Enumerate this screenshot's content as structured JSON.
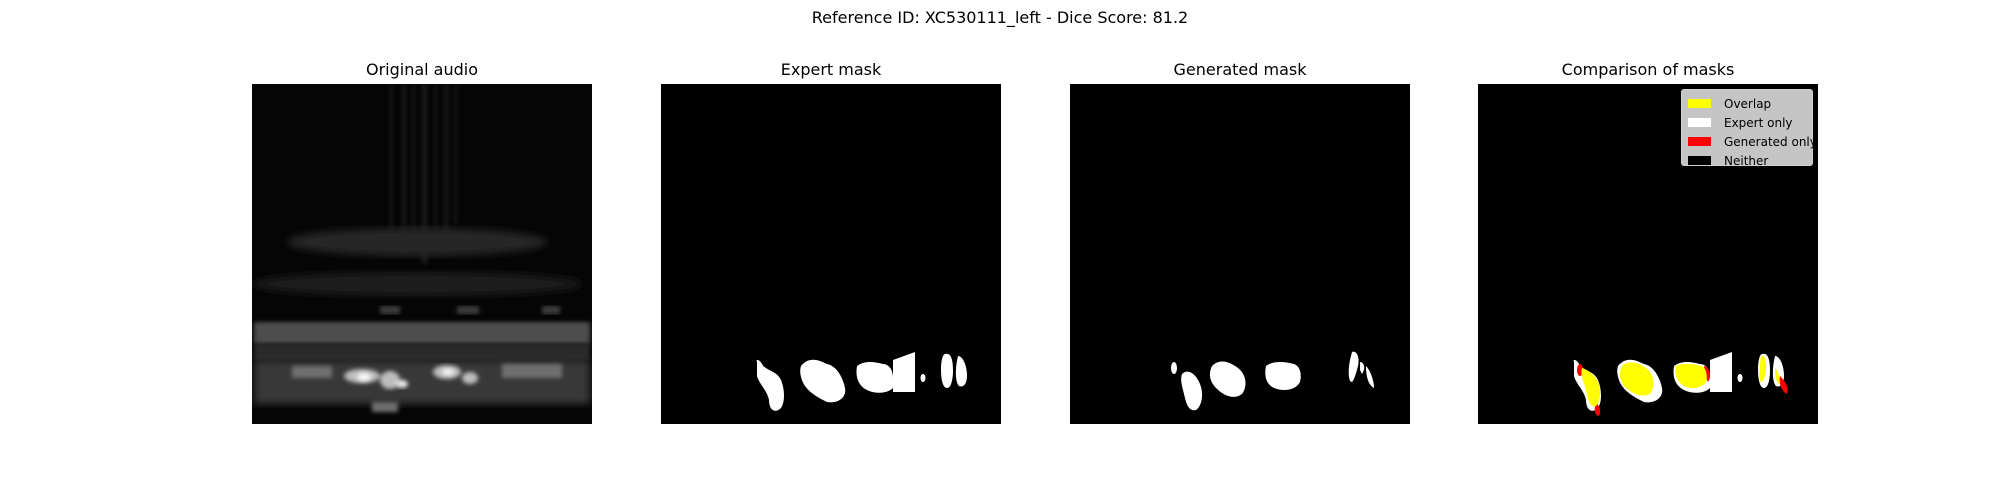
{
  "figure": {
    "suptitle": "Reference ID: XC530111_left - Dice Score: 81.2"
  },
  "panels": {
    "original": {
      "title": "Original audio"
    },
    "expert": {
      "title": "Expert mask"
    },
    "generated": {
      "title": "Generated mask"
    },
    "comparison": {
      "title": "Comparison of masks"
    }
  },
  "legend": {
    "items": [
      {
        "label": "Overlap",
        "color": "#ffff00"
      },
      {
        "label": "Expert only",
        "color": "#ffffff"
      },
      {
        "label": "Generated only",
        "color": "#ff0000"
      },
      {
        "label": "Neither",
        "color": "#000000"
      }
    ]
  }
}
